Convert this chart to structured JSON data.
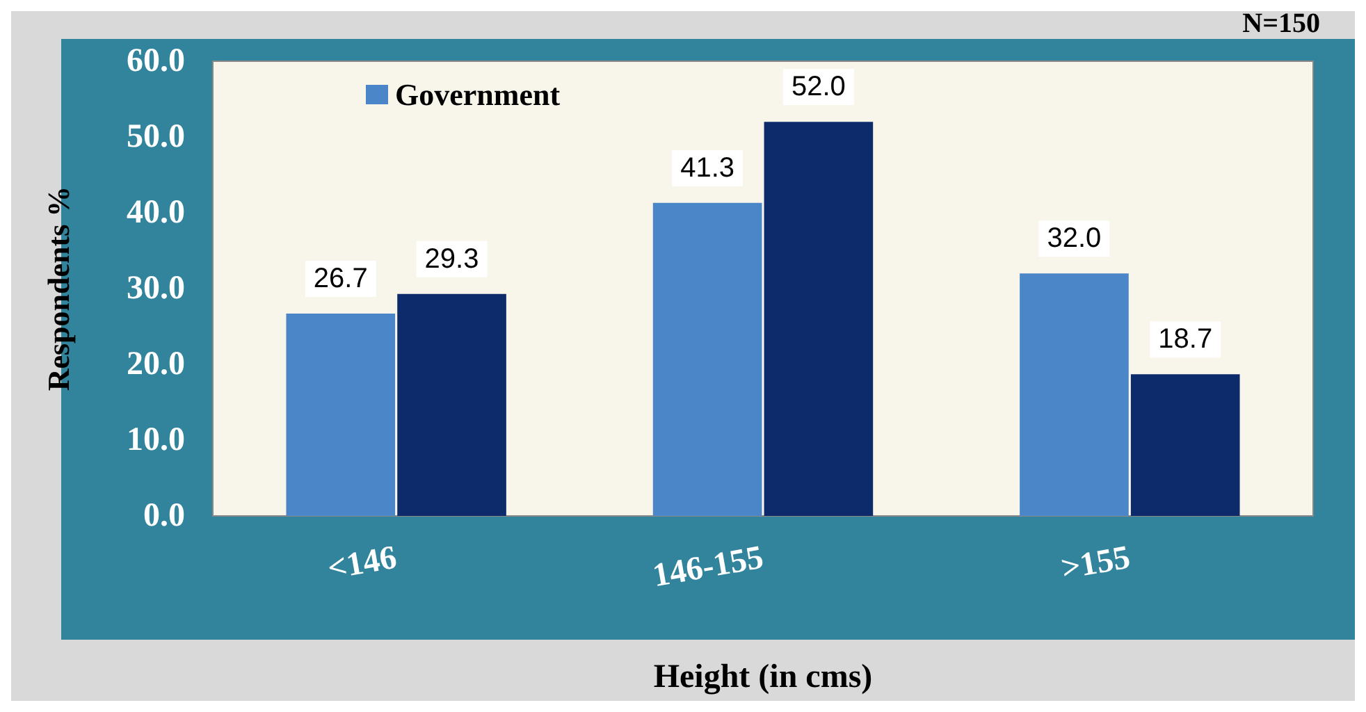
{
  "chart_data": {
    "type": "bar",
    "xlabel": "Height (in cms)",
    "ylabel": "Respondents %",
    "annotations": [
      "N=150"
    ],
    "categories": [
      "<146",
      "146-155",
      ">155"
    ],
    "series": [
      {
        "name": "Government",
        "color": "#4a86c8",
        "values": [
          26.7,
          41.3,
          32.0
        ],
        "value_labels": [
          "26.7",
          "41.3",
          "32.0"
        ]
      },
      {
        "color": "#0d2a6b",
        "values": [
          29.3,
          52.0,
          18.7
        ],
        "value_labels": [
          "29.3",
          "52.0",
          "18.7"
        ]
      }
    ],
    "ylim": [
      0,
      60
    ],
    "yticks": [
      {
        "value": 0,
        "label": "0.0"
      },
      {
        "value": 10,
        "label": "10.0"
      },
      {
        "value": 20,
        "label": "20.0"
      },
      {
        "value": 30,
        "label": "30.0"
      },
      {
        "value": 40,
        "label": "40.0"
      },
      {
        "value": 50,
        "label": "50.0"
      },
      {
        "value": 60,
        "label": "60.0"
      }
    ],
    "legend": "top left"
  }
}
